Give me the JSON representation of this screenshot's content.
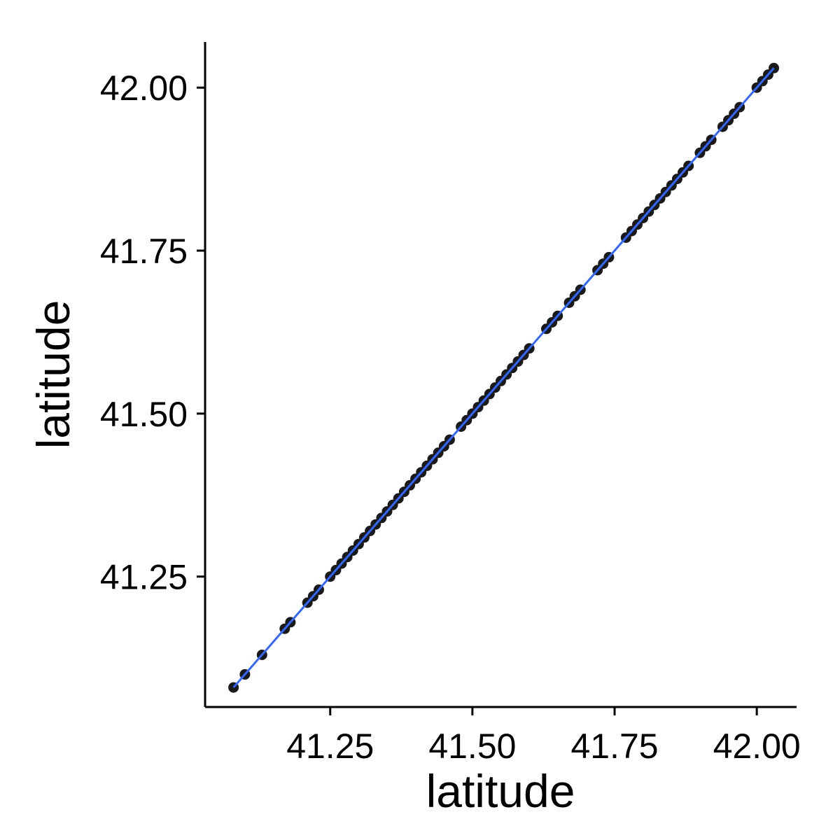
{
  "chart_data": {
    "type": "scatter",
    "xlabel": "latitude",
    "ylabel": "latitude",
    "xlim": [
      41.03,
      42.07
    ],
    "ylim": [
      41.05,
      42.07
    ],
    "x_ticks": [
      41.25,
      41.5,
      41.75,
      42.0
    ],
    "x_tick_labels": [
      "41.25",
      "41.50",
      "41.75",
      "42.00"
    ],
    "y_ticks": [
      41.25,
      41.5,
      41.75,
      42.0
    ],
    "y_tick_labels": [
      "41.25",
      "41.50",
      "41.75",
      "42.00"
    ],
    "grid": false,
    "fit_line": {
      "from": [
        41.08,
        41.08
      ],
      "to": [
        42.03,
        42.03
      ],
      "color": "#3366ff"
    },
    "point_color": "#1a1a1a",
    "points": [
      [
        41.08,
        41.08
      ],
      [
        41.1,
        41.1
      ],
      [
        41.13,
        41.13
      ],
      [
        41.17,
        41.17
      ],
      [
        41.18,
        41.18
      ],
      [
        41.21,
        41.21
      ],
      [
        41.22,
        41.22
      ],
      [
        41.23,
        41.23
      ],
      [
        41.25,
        41.25
      ],
      [
        41.26,
        41.26
      ],
      [
        41.27,
        41.27
      ],
      [
        41.28,
        41.28
      ],
      [
        41.29,
        41.29
      ],
      [
        41.3,
        41.3
      ],
      [
        41.31,
        41.31
      ],
      [
        41.32,
        41.32
      ],
      [
        41.33,
        41.33
      ],
      [
        41.34,
        41.34
      ],
      [
        41.35,
        41.35
      ],
      [
        41.36,
        41.36
      ],
      [
        41.37,
        41.37
      ],
      [
        41.38,
        41.38
      ],
      [
        41.39,
        41.39
      ],
      [
        41.4,
        41.4
      ],
      [
        41.41,
        41.41
      ],
      [
        41.42,
        41.42
      ],
      [
        41.43,
        41.43
      ],
      [
        41.44,
        41.44
      ],
      [
        41.45,
        41.45
      ],
      [
        41.46,
        41.46
      ],
      [
        41.48,
        41.48
      ],
      [
        41.49,
        41.49
      ],
      [
        41.5,
        41.5
      ],
      [
        41.51,
        41.51
      ],
      [
        41.52,
        41.52
      ],
      [
        41.53,
        41.53
      ],
      [
        41.54,
        41.54
      ],
      [
        41.55,
        41.55
      ],
      [
        41.56,
        41.56
      ],
      [
        41.57,
        41.57
      ],
      [
        41.58,
        41.58
      ],
      [
        41.59,
        41.59
      ],
      [
        41.6,
        41.6
      ],
      [
        41.63,
        41.63
      ],
      [
        41.64,
        41.64
      ],
      [
        41.65,
        41.65
      ],
      [
        41.67,
        41.67
      ],
      [
        41.68,
        41.68
      ],
      [
        41.69,
        41.69
      ],
      [
        41.72,
        41.72
      ],
      [
        41.73,
        41.73
      ],
      [
        41.74,
        41.74
      ],
      [
        41.77,
        41.77
      ],
      [
        41.78,
        41.78
      ],
      [
        41.79,
        41.79
      ],
      [
        41.8,
        41.8
      ],
      [
        41.81,
        41.81
      ],
      [
        41.82,
        41.82
      ],
      [
        41.83,
        41.83
      ],
      [
        41.84,
        41.84
      ],
      [
        41.85,
        41.85
      ],
      [
        41.86,
        41.86
      ],
      [
        41.87,
        41.87
      ],
      [
        41.88,
        41.88
      ],
      [
        41.9,
        41.9
      ],
      [
        41.91,
        41.91
      ],
      [
        41.92,
        41.92
      ],
      [
        41.94,
        41.94
      ],
      [
        41.95,
        41.95
      ],
      [
        41.96,
        41.96
      ],
      [
        41.97,
        41.97
      ],
      [
        42.0,
        42.0
      ],
      [
        42.01,
        42.01
      ],
      [
        42.02,
        42.02
      ],
      [
        42.03,
        42.03
      ]
    ]
  }
}
